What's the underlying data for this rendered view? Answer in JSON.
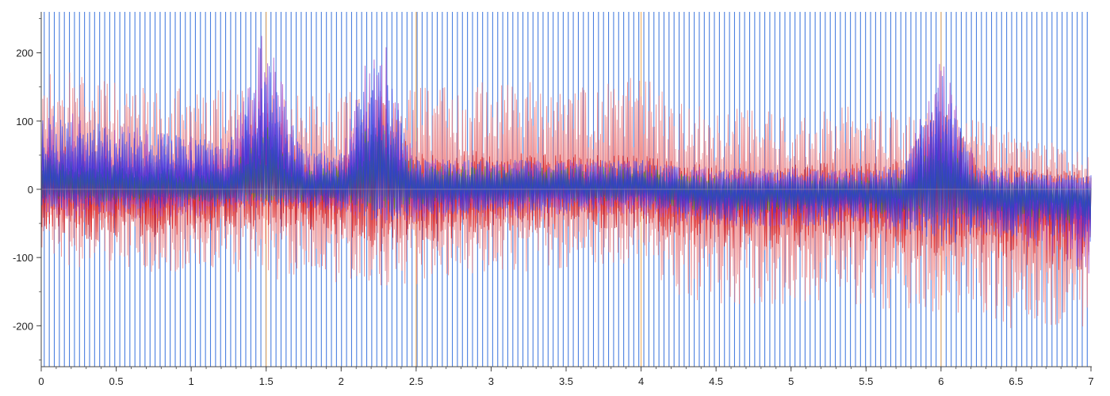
{
  "chart_data": {
    "type": "line",
    "title": "",
    "xlabel": "",
    "ylabel": "",
    "xlim": [
      0,
      7
    ],
    "ylim": [
      -260,
      260
    ],
    "x_ticks": [
      0,
      0.5,
      1,
      1.5,
      2,
      2.5,
      3,
      3.5,
      4,
      4.5,
      5,
      5.5,
      6,
      6.5,
      7
    ],
    "x_tick_labels": [
      "0",
      "0.5",
      "1",
      "1.5",
      "2",
      "2.5",
      "3",
      "3.5",
      "4",
      "4.5",
      "5",
      "5.5",
      "6",
      "6.5",
      "7"
    ],
    "y_ticks": [
      200,
      100,
      0,
      -100,
      -200
    ],
    "y_tick_labels": [
      "200",
      "100",
      "0",
      "-100",
      "-200"
    ],
    "grid": false,
    "legend": "none",
    "markers": {
      "color": "#4a7fe0",
      "x_start": 0.02,
      "x_step": 0.0336,
      "x_end": 6.99
    },
    "orange_markers": [
      1.5,
      2.5,
      4.0,
      6.0
    ],
    "series": [
      {
        "color": "#f08080",
        "x": [
          0,
          0.25,
          0.5,
          0.75,
          1,
          1.25,
          1.5,
          1.75,
          2,
          2.25,
          2.5,
          2.75,
          3,
          3.25,
          3.5,
          3.75,
          4,
          4.25,
          4.5,
          4.75,
          5,
          5.25,
          5.5,
          5.75,
          6,
          6.25,
          6.5,
          6.75,
          7
        ],
        "upper": [
          185,
          175,
          165,
          160,
          160,
          155,
          145,
          145,
          150,
          150,
          160,
          160,
          165,
          165,
          160,
          160,
          175,
          135,
          130,
          125,
          120,
          130,
          135,
          125,
          120,
          110,
          95,
          80,
          60
        ],
        "lower": [
          -100,
          -130,
          -130,
          -130,
          -130,
          -130,
          -140,
          -140,
          -145,
          -150,
          -150,
          -150,
          -130,
          -130,
          -125,
          -120,
          -120,
          -170,
          -175,
          -175,
          -175,
          -175,
          -180,
          -190,
          -185,
          -200,
          -210,
          -210,
          -205
        ]
      },
      {
        "color": "#d40000",
        "x": [
          0,
          0.25,
          0.5,
          0.75,
          1,
          1.25,
          1.5,
          1.75,
          2,
          2.25,
          2.5,
          2.75,
          3,
          3.25,
          3.5,
          3.75,
          4,
          4.25,
          4.5,
          4.75,
          5,
          5.25,
          5.5,
          5.75,
          6,
          6.25,
          6.5,
          6.75,
          7
        ],
        "upper": [
          70,
          65,
          60,
          55,
          50,
          45,
          140,
          45,
          55,
          160,
          60,
          60,
          60,
          55,
          55,
          55,
          55,
          45,
          40,
          35,
          40,
          45,
          45,
          50,
          140,
          45,
          40,
          35,
          35
        ],
        "lower": [
          -60,
          -80,
          -80,
          -75,
          -70,
          -60,
          -60,
          -60,
          -70,
          -100,
          -80,
          -80,
          -65,
          -65,
          -60,
          -60,
          -60,
          -80,
          -90,
          -90,
          -90,
          -90,
          -95,
          -100,
          -110,
          -100,
          -110,
          -120,
          -120
        ]
      },
      {
        "color": "#9b30c0",
        "x": [
          0,
          0.25,
          0.5,
          0.75,
          1,
          1.25,
          1.5,
          1.75,
          2,
          2.25,
          2.5,
          2.75,
          3,
          3.25,
          3.5,
          3.75,
          4,
          4.25,
          4.5,
          4.75,
          5,
          5.25,
          5.5,
          5.75,
          6,
          6.25,
          6.5,
          6.75,
          7
        ],
        "upper": [
          120,
          115,
          100,
          90,
          85,
          75,
          250,
          60,
          60,
          255,
          50,
          45,
          45,
          45,
          45,
          45,
          45,
          40,
          35,
          35,
          35,
          35,
          35,
          40,
          200,
          40,
          35,
          30,
          30
        ],
        "lower": [
          -40,
          -50,
          -50,
          -50,
          -45,
          -40,
          -40,
          -40,
          -40,
          -70,
          -50,
          -50,
          -45,
          -45,
          -40,
          -40,
          -40,
          -55,
          -55,
          -60,
          -60,
          -60,
          -60,
          -65,
          -80,
          -70,
          -80,
          -100,
          -130
        ]
      },
      {
        "color": "#1f8a2e",
        "x": [
          0,
          0.25,
          0.5,
          0.75,
          1,
          1.25,
          1.5,
          1.75,
          2,
          2.25,
          2.5,
          2.75,
          3,
          3.25,
          3.5,
          3.75,
          4,
          4.25,
          4.5,
          4.75,
          5,
          5.25,
          5.5,
          5.75,
          6,
          6.25,
          6.5,
          6.75,
          7
        ],
        "upper": [
          50,
          45,
          40,
          35,
          30,
          30,
          100,
          30,
          35,
          120,
          35,
          35,
          35,
          35,
          35,
          35,
          35,
          25,
          20,
          15,
          15,
          20,
          20,
          20,
          80,
          20,
          15,
          10,
          5
        ],
        "lower": [
          -15,
          -20,
          -20,
          -20,
          -20,
          -20,
          -25,
          -20,
          -20,
          -40,
          -25,
          -25,
          -20,
          -20,
          -20,
          -20,
          -20,
          -30,
          -35,
          -35,
          -35,
          -35,
          -35,
          -40,
          -50,
          -40,
          -45,
          -50,
          -55
        ]
      },
      {
        "color": "#2a35e8",
        "x": [
          0,
          0.25,
          0.5,
          0.75,
          1,
          1.25,
          1.5,
          1.75,
          2,
          2.25,
          2.5,
          2.75,
          3,
          3.25,
          3.5,
          3.75,
          4,
          4.25,
          4.5,
          4.75,
          5,
          5.25,
          5.5,
          5.75,
          6,
          6.25,
          6.5,
          6.75,
          7
        ],
        "upper": [
          110,
          105,
          95,
          85,
          80,
          70,
          200,
          55,
          55,
          215,
          45,
          45,
          45,
          45,
          45,
          45,
          45,
          35,
          30,
          30,
          30,
          30,
          30,
          35,
          180,
          35,
          30,
          25,
          25
        ],
        "lower": [
          -30,
          -35,
          -35,
          -35,
          -30,
          -30,
          -35,
          -30,
          -30,
          -60,
          -40,
          -40,
          -35,
          -35,
          -35,
          -30,
          -30,
          -45,
          -50,
          -55,
          -55,
          -55,
          -55,
          -60,
          -100,
          -65,
          -75,
          -80,
          -85
        ]
      }
    ]
  }
}
